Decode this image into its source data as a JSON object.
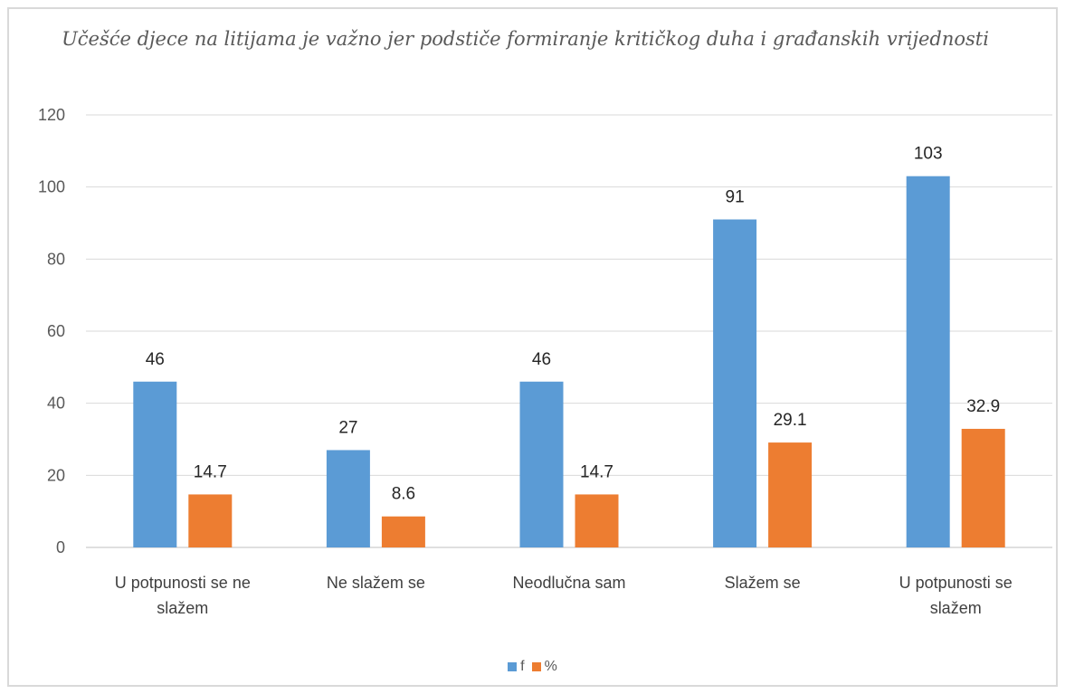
{
  "chart_data": {
    "type": "bar",
    "title": "Učešće djece na litijama je važno jer podstiče formiranje kritičkog duha i građanskih vrijednosti",
    "categories": [
      [
        "U potpunosti se ne",
        "slažem"
      ],
      [
        "Ne slažem se"
      ],
      [
        "Neodlučna sam"
      ],
      [
        "Slažem se"
      ],
      [
        "U potpunosti se",
        "slažem"
      ]
    ],
    "series": [
      {
        "name": "f",
        "color": "#5b9bd5",
        "values": [
          46,
          27,
          46,
          91,
          103
        ]
      },
      {
        "name": "%",
        "color": "#ed7d31",
        "values": [
          14.7,
          8.6,
          14.7,
          29.1,
          32.9
        ]
      }
    ],
    "ylim": [
      0,
      120
    ],
    "yticks": [
      0,
      20,
      40,
      60,
      80,
      100,
      120
    ],
    "grid": true,
    "legend_position": "bottom"
  }
}
